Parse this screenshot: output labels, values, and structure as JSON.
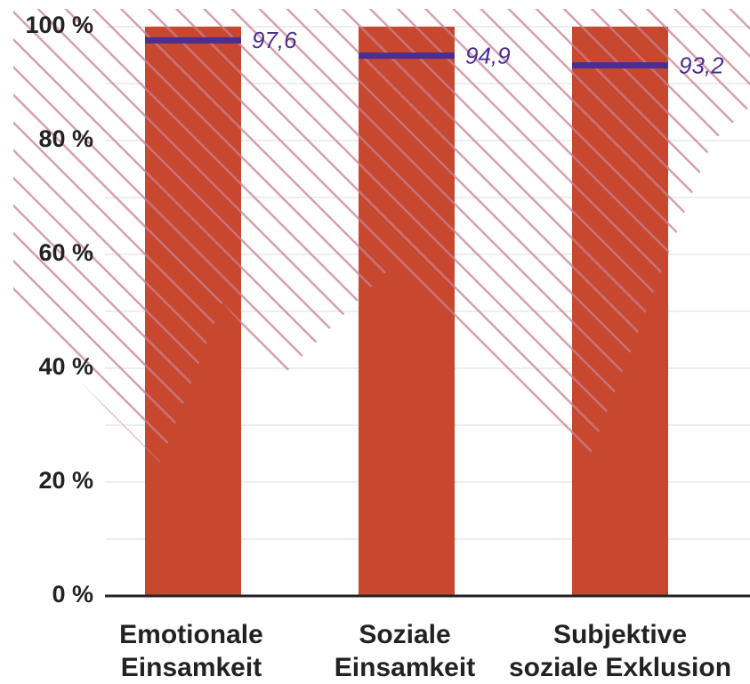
{
  "chart_data": {
    "type": "bar",
    "categories": [
      [
        "Emotionale",
        "Einsamkeit"
      ],
      [
        "Soziale",
        "Einsamkeit"
      ],
      [
        "Subjektive",
        "soziale Exklusion"
      ]
    ],
    "values": [
      100,
      100,
      100
    ],
    "color": "#c8472f",
    "markers": {
      "values": [
        97.6,
        94.9,
        93.2
      ],
      "value_labels": [
        "97,6",
        "94,9",
        "93,2"
      ],
      "color": "#4b2e91"
    },
    "ylim": [
      0,
      100
    ],
    "yticks": [
      {
        "value": 0,
        "label": "0 %"
      },
      {
        "value": 20,
        "label": "20 %"
      },
      {
        "value": 40,
        "label": "40 %"
      },
      {
        "value": 60,
        "label": "60 %"
      },
      {
        "value": 80,
        "label": "80 %"
      },
      {
        "value": 100,
        "label": "100 %"
      }
    ],
    "minor_yticks": [
      10,
      30,
      50,
      70,
      90
    ],
    "grid": true
  }
}
